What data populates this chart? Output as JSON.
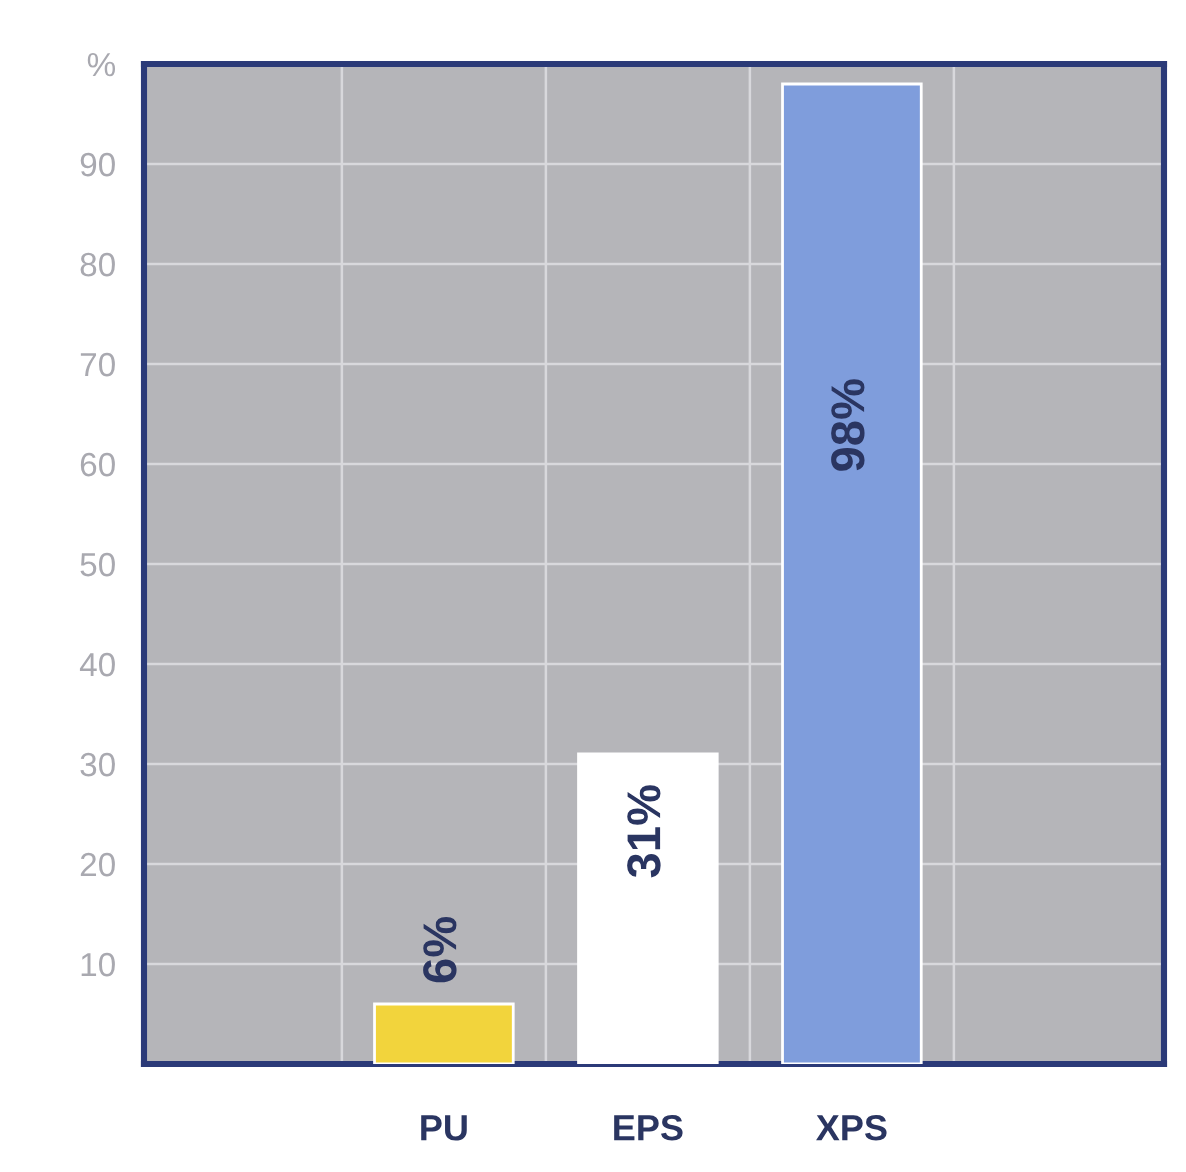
{
  "chart_data": {
    "type": "bar",
    "categories": [
      "PU",
      "EPS",
      "XPS"
    ],
    "values": [
      6,
      31,
      98
    ],
    "colors": [
      "#f2d43c",
      "#ffffff",
      "#7f9ddc"
    ],
    "value_labels": [
      "6%",
      "31%",
      "98%"
    ],
    "ylim": [
      0,
      100
    ],
    "yticks": [
      10,
      20,
      30,
      40,
      50,
      60,
      70,
      80,
      90,
      {
        "value": 100,
        "label": "%"
      }
    ],
    "grid": true
  }
}
